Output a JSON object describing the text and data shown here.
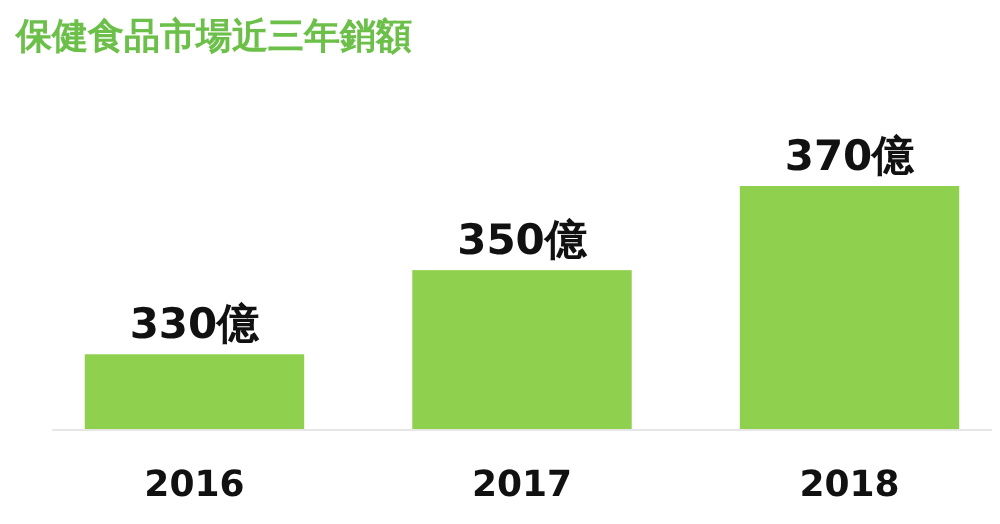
{
  "chart_data": {
    "type": "bar",
    "title": "保健食品市場近三年銷額",
    "categories": [
      "2016",
      "2017",
      "2018"
    ],
    "values": [
      330,
      350,
      370
    ],
    "value_labels": [
      "330億",
      "350億",
      "370億"
    ],
    "color": "#8fd14f",
    "ylim": [
      312,
      370
    ]
  }
}
